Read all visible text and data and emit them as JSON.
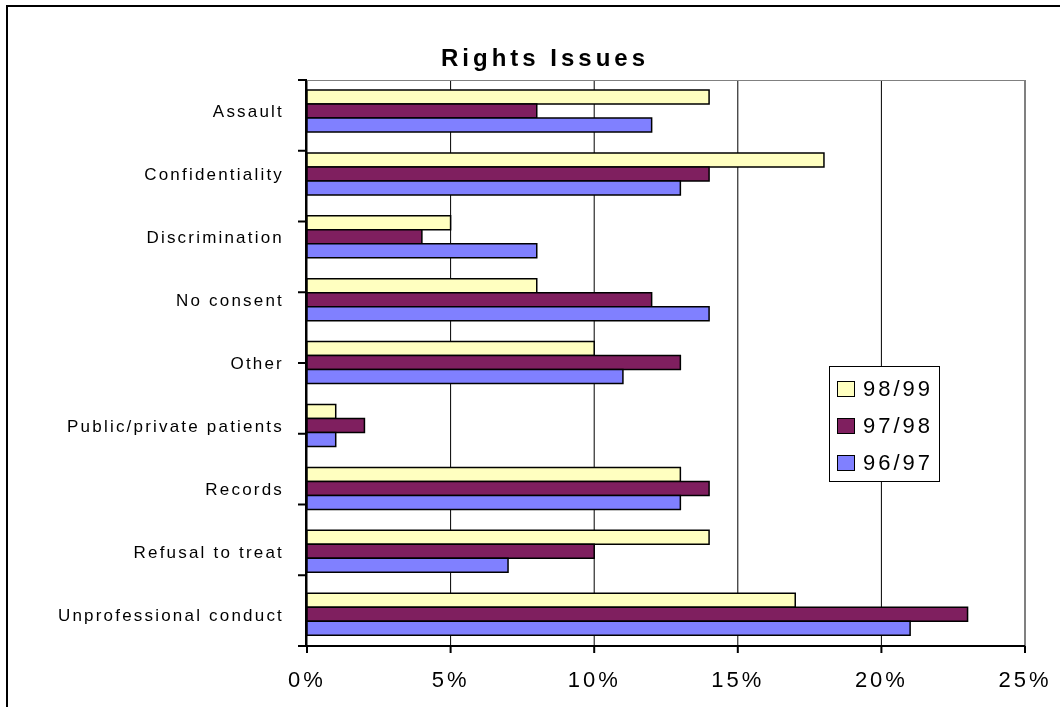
{
  "chart_data": {
    "type": "bar",
    "orientation": "horizontal",
    "title": "Rights Issues",
    "categories": [
      "Assault",
      "Confidentiality",
      "Discrimination",
      "No consent",
      "Other",
      "Public/private patients",
      "Records",
      "Refusal to treat",
      "Unprofessional conduct"
    ],
    "series": [
      {
        "name": "98/99",
        "color": "#ffffc0",
        "values": [
          14,
          18,
          5,
          8,
          10,
          1,
          13,
          14,
          17
        ]
      },
      {
        "name": "97/98",
        "color": "#7f1f5f",
        "values": [
          8,
          14,
          4,
          12,
          13,
          2,
          14,
          10,
          23
        ]
      },
      {
        "name": "96/97",
        "color": "#8080ff",
        "values": [
          12,
          13,
          8,
          14,
          11,
          1,
          13,
          7,
          21
        ]
      }
    ],
    "xlim": [
      0,
      25
    ],
    "xticks": [
      {
        "value": 0,
        "label": "0%"
      },
      {
        "value": 5,
        "label": "5%"
      },
      {
        "value": 10,
        "label": "10%"
      },
      {
        "value": 15,
        "label": "15%"
      },
      {
        "value": 20,
        "label": "20%"
      },
      {
        "value": 25,
        "label": "25%"
      }
    ],
    "grid": "x",
    "legend": "right"
  }
}
